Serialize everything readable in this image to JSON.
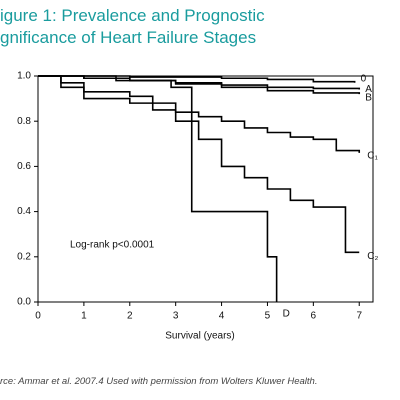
{
  "chart_data": {
    "type": "line",
    "step": true,
    "title": [
      "igure 1: Prevalence and Prognostic",
      "gnificance of Heart Failure Stages"
    ],
    "x_label": "Survival (years)",
    "annotation": "Log-rank p<0.0001",
    "source": "rce: Ammar et al. 2007.4 Used with permission from Wolters Kluwer Health.",
    "xlim": [
      0,
      7.3
    ],
    "ylim": [
      0,
      1
    ],
    "xticks": [
      0,
      1,
      2,
      3,
      4,
      5,
      6,
      7
    ],
    "yticks": [
      {
        "value": 0,
        "label": "0.0"
      },
      0.2,
      0.4,
      0.6,
      0.8,
      {
        "value": 1,
        "label": "1.0"
      }
    ],
    "series": [
      {
        "name": "0",
        "color": "#000000",
        "x": [
          0,
          2,
          4,
          5,
          6,
          6.9
        ],
        "values": [
          1,
          0.995,
          0.99,
          0.985,
          0.975,
          0.97
        ]
      },
      {
        "name": "A",
        "color": "#000000",
        "x": [
          0,
          1,
          2,
          3,
          4,
          5,
          6,
          7
        ],
        "values": [
          1,
          0.99,
          0.98,
          0.97,
          0.96,
          0.95,
          0.945,
          0.94
        ]
      },
      {
        "name": "B",
        "color": "#000000",
        "x": [
          0,
          1,
          2,
          3,
          4,
          5,
          6,
          7
        ],
        "values": [
          1,
          0.99,
          0.98,
          0.965,
          0.95,
          0.935,
          0.925,
          0.92
        ]
      },
      {
        "name": "C₁",
        "color": "#000000",
        "x": [
          0,
          0.5,
          1,
          2,
          2.5,
          3,
          3.5,
          4,
          4.5,
          5,
          5.5,
          6,
          6.5,
          7
        ],
        "values": [
          1,
          0.97,
          0.93,
          0.91,
          0.88,
          0.84,
          0.82,
          0.8,
          0.77,
          0.75,
          0.73,
          0.72,
          0.67,
          0.66
        ]
      },
      {
        "name": "C₂",
        "color": "#000000",
        "x": [
          0,
          0.5,
          1,
          2,
          2.5,
          3,
          3.5,
          4,
          4.5,
          5,
          5.5,
          6,
          6.7,
          7
        ],
        "values": [
          1,
          0.95,
          0.9,
          0.88,
          0.85,
          0.8,
          0.72,
          0.6,
          0.55,
          0.5,
          0.45,
          0.42,
          0.22,
          0.22
        ]
      },
      {
        "name": "D",
        "color": "#000000",
        "x": [
          0,
          1.7,
          2.9,
          3.35,
          5.0,
          5.2
        ],
        "values": [
          1,
          0.98,
          0.95,
          0.4,
          0.2,
          0
        ]
      }
    ]
  }
}
